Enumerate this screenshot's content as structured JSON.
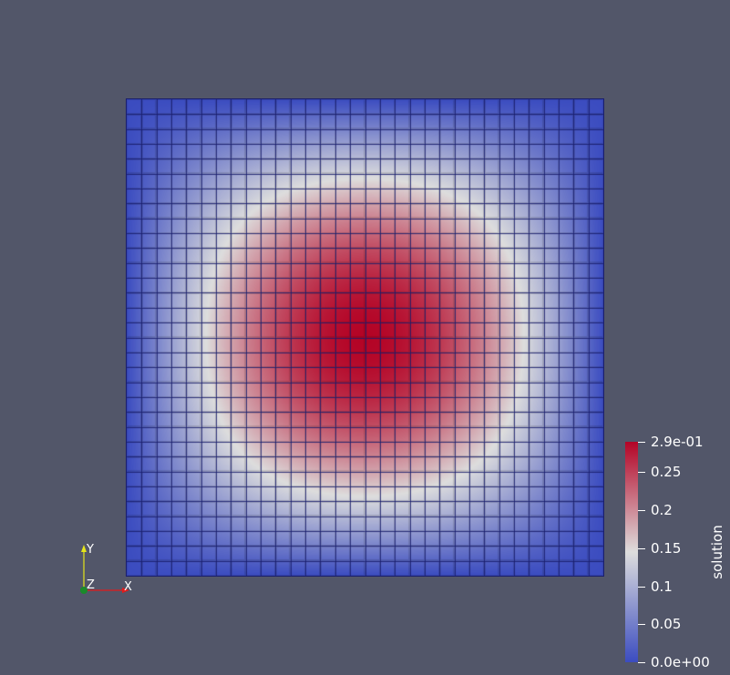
{
  "viewport": {
    "background": "#525669"
  },
  "mesh": {
    "cells_x": 32,
    "cells_y": 32,
    "cell_edge_color": "#1a1e6e",
    "field": "solution",
    "peak_value": 0.29
  },
  "colorbar": {
    "title": "solution",
    "range": [
      0.0,
      0.29
    ],
    "colormap": "cool-to-warm",
    "stops": [
      "#3b4cc0",
      "#dddddd",
      "#b40426"
    ],
    "ticks": [
      {
        "value": 0.29,
        "label": "2.9e-01"
      },
      {
        "value": 0.25,
        "label": "0.25"
      },
      {
        "value": 0.2,
        "label": "0.2"
      },
      {
        "value": 0.15,
        "label": "0.15"
      },
      {
        "value": 0.1,
        "label": "0.1"
      },
      {
        "value": 0.05,
        "label": "0.05"
      },
      {
        "value": 0.0,
        "label": "0.0e+00"
      }
    ]
  },
  "orientation_axes": {
    "x_label": "X",
    "y_label": "Y",
    "z_label": "Z",
    "x_color": "#e11b1b",
    "y_color": "#e6e619",
    "z_color": "#1a8a2a"
  }
}
